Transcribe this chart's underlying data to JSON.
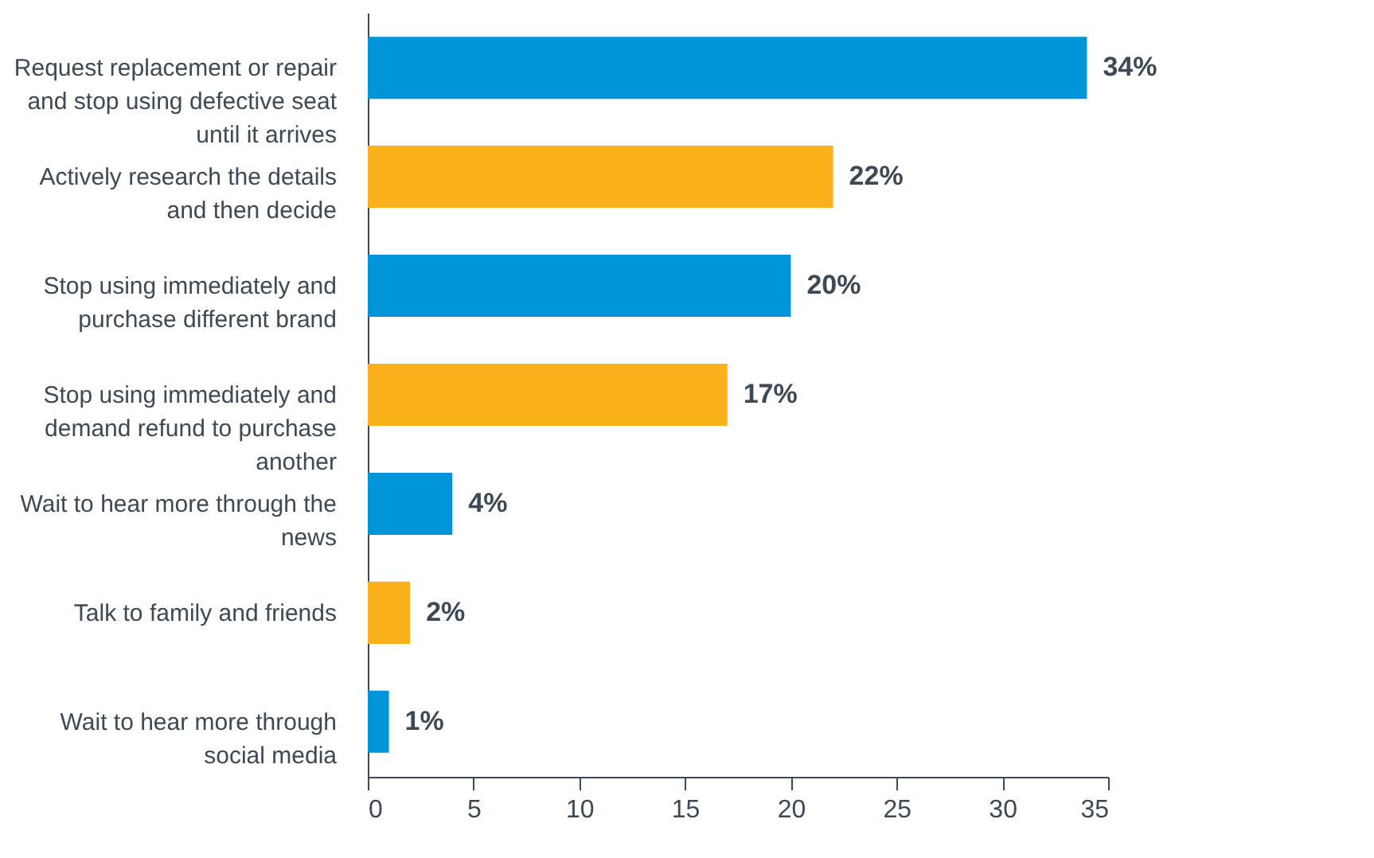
{
  "chart_data": {
    "type": "bar",
    "orientation": "horizontal",
    "categories": [
      "Request replacement or repair and stop using defective seat until it arrives",
      "Actively research the details and then decide",
      "Stop using immediately and purchase different brand",
      "Stop using immediately and demand refund to purchase another",
      "Wait to hear more through the news",
      "Talk to family and friends",
      "Wait to hear more through social media"
    ],
    "values": [
      34,
      22,
      20,
      17,
      4,
      2,
      1
    ],
    "colors": [
      "#0095d9",
      "#fbb11c",
      "#0095d9",
      "#fbb11c",
      "#0095d9",
      "#fbb11c",
      "#0095d9"
    ],
    "value_labels": [
      "34%",
      "22%",
      "20%",
      "17%",
      "4%",
      "2%",
      "1%"
    ],
    "xlim": [
      0,
      35
    ],
    "xticks": [
      0,
      5,
      10,
      15,
      20,
      25,
      30,
      35
    ],
    "grid": false
  }
}
